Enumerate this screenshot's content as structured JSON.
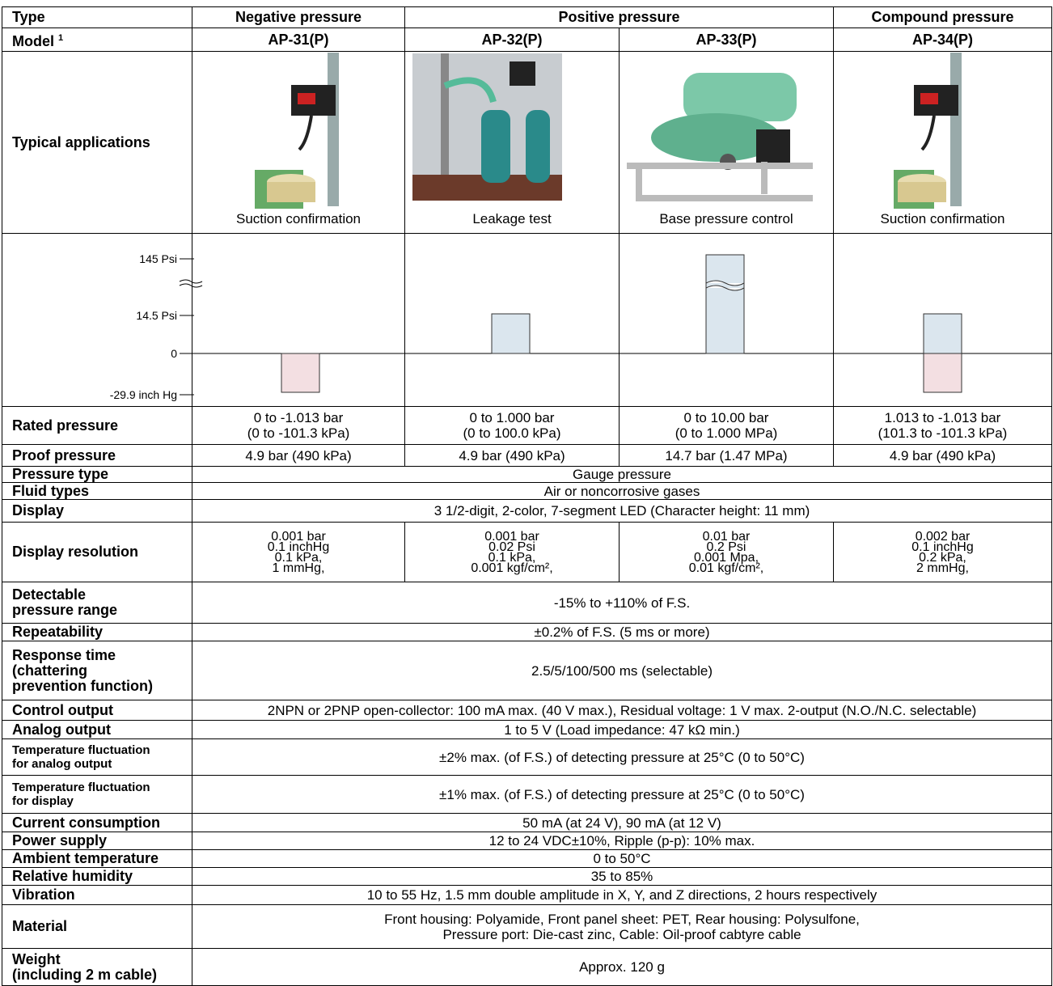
{
  "header": {
    "type_label": "Type",
    "types": [
      "Negative pressure",
      "Positive pressure",
      "Compound pressure"
    ],
    "model_label": "Model",
    "model_footnote": "1",
    "models": [
      "AP-31(P)",
      "AP-32(P)",
      "AP-33(P)",
      "AP-34(P)"
    ]
  },
  "applications": {
    "label": "Typical applications",
    "captions": [
      "Suction confirmation",
      "Leakage test",
      "Base pressure control",
      "Suction confirmation"
    ]
  },
  "range_diagram": {
    "labels": [
      "145 Psi",
      "14.5 Psi",
      "0",
      "-29.9 inch Hg"
    ]
  },
  "rows": [
    {
      "label": [
        "Rated pressure"
      ],
      "cells": [
        [
          "0 to -1.013 bar",
          "(0 to -101.3 kPa)"
        ],
        [
          "0 to 1.000 bar",
          "(0 to 100.0 kPa)"
        ],
        [
          "0 to 10.00 bar",
          "(0 to 1.000 MPa)"
        ],
        [
          "1.013 to -1.013 bar",
          "(101.3 to -101.3 kPa)"
        ]
      ]
    },
    {
      "label": [
        "Proof pressure"
      ],
      "cells": [
        [
          "4.9 bar (490 kPa)"
        ],
        [
          "4.9 bar (490 kPa)"
        ],
        [
          "14.7 bar (1.47 MPa)"
        ],
        [
          "4.9 bar (490 kPa)"
        ]
      ]
    },
    {
      "label": [
        "Pressure type"
      ],
      "value": [
        "Gauge pressure"
      ]
    },
    {
      "label": [
        "Fluid types"
      ],
      "value": [
        "Air or noncorrosive gases"
      ]
    },
    {
      "label": [
        "Display"
      ],
      "value": [
        "3 1/2-digit, 2-color, 7-segment LED (Character height: 11 mm)"
      ]
    },
    {
      "label": [
        "Display resolution"
      ],
      "cells": [
        [
          "0.001 bar",
          "0.1 inchHg",
          "0.1 kPa,",
          "1 mmHg,"
        ],
        [
          "0.001 bar",
          "0.02 Psi",
          "0.1 kPa,",
          "0.001 kgf/cm²,"
        ],
        [
          "0.01 bar",
          "0.2 Psi",
          "0.001 Mpa,",
          "0.01 kgf/cm²,"
        ],
        [
          "0.002 bar",
          "0.1 inchHg",
          "0.2 kPa,",
          "2 mmHg,"
        ]
      ]
    },
    {
      "label": [
        "Detectable",
        "pressure range"
      ],
      "value": [
        "-15% to +110% of F.S."
      ]
    },
    {
      "label": [
        "Repeatability"
      ],
      "value": [
        "±0.2% of F.S. (5 ms or more)"
      ]
    },
    {
      "label": [
        "Response time",
        "(chattering",
        "prevention function)"
      ],
      "value": [
        "2.5/5/100/500 ms (selectable)"
      ]
    },
    {
      "label": [
        "Control output"
      ],
      "value": [
        "2NPN or 2PNP open-collector: 100 mA max. (40 V max.), Residual voltage: 1 V max. 2-output (N.O./N.C. selectable)"
      ]
    },
    {
      "label": [
        "Analog output"
      ],
      "value": [
        "1 to 5 V (Load impedance: 47 kΩ min.)"
      ]
    },
    {
      "label": [
        "Temperature fluctuation",
        "for analog output"
      ],
      "value": [
        "±2% max. (of F.S.) of detecting pressure at 25°C (0 to 50°C)"
      ]
    },
    {
      "label": [
        "Temperature fluctuation",
        "for display"
      ],
      "value": [
        "±1% max. (of F.S.) of detecting pressure at 25°C (0 to 50°C)"
      ]
    },
    {
      "label": [
        "Current consumption"
      ],
      "value": [
        "50 mA (at 24 V), 90 mA (at 12 V)"
      ]
    },
    {
      "label": [
        "Power supply"
      ],
      "value": [
        "12 to 24 VDC±10%, Ripple (p-p): 10% max."
      ]
    },
    {
      "label": [
        "Ambient temperature"
      ],
      "value": [
        "0 to 50°C"
      ]
    },
    {
      "label": [
        "Relative humidity"
      ],
      "value": [
        "35 to 85%"
      ]
    },
    {
      "label": [
        "Vibration"
      ],
      "value": [
        "10 to 55 Hz, 1.5 mm double amplitude in X, Y, and Z directions, 2 hours respectively"
      ]
    },
    {
      "label": [
        "Material"
      ],
      "value": [
        "Front housing: Polyamide, Front panel sheet: PET, Rear housing: Polysulfone,",
        "Pressure port: Die-cast zinc, Cable: Oil-proof cabtyre cable"
      ]
    },
    {
      "label": [
        "Weight",
        "(including 2 m cable)"
      ],
      "value": [
        "Approx. 120 g"
      ]
    }
  ]
}
